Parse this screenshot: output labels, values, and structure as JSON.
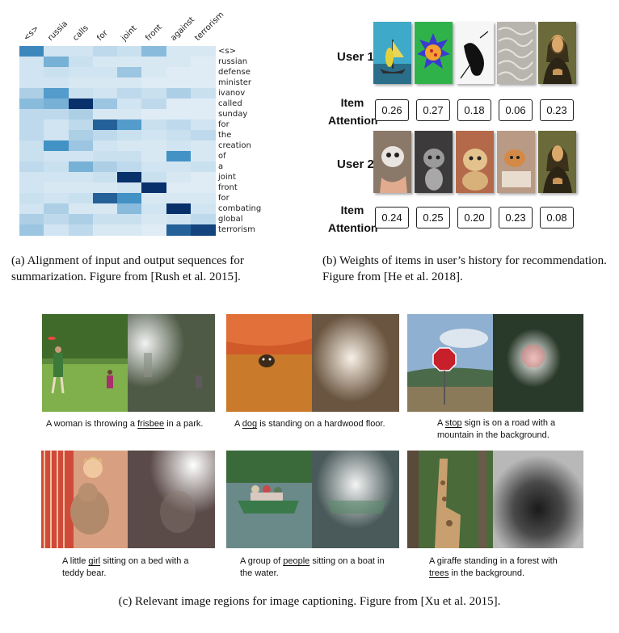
{
  "panel_a": {
    "columns": [
      "<s>",
      "russia",
      "calls",
      "for",
      "joint",
      "front",
      "against",
      "terrorism"
    ],
    "rows": [
      "<s>",
      "russian",
      "defense",
      "minister",
      "ivanov",
      "called",
      "sunday",
      "for",
      "the",
      "creation",
      "of",
      "a",
      "joint",
      "front",
      "for",
      "combating",
      "global",
      "terrorism"
    ],
    "caption": "(a) Alignment of input and output sequences for summarization. Figure from [Rush et al. 2015]."
  },
  "panel_b": {
    "users": [
      {
        "label": "User 1",
        "weights": [
          "0.26",
          "0.27",
          "0.18",
          "0.06",
          "0.23"
        ]
      },
      {
        "label": "User 2",
        "weights": [
          "0.24",
          "0.25",
          "0.20",
          "0.23",
          "0.08"
        ]
      }
    ],
    "item_attention_label": "Item Attention",
    "caption": "(b) Weights of items in user’s history for recommendation. Figure from [He et al. 2018]."
  },
  "panel_c": {
    "captions": [
      {
        "before": "A woman is throwing a ",
        "word": "frisbee",
        "after": " in a park."
      },
      {
        "before": "A ",
        "word": "dog",
        "after": " is standing on a hardwood floor."
      },
      {
        "before": "A ",
        "word": "stop",
        "after": " sign is on a road with a mountain in the background."
      },
      {
        "before": "A little ",
        "word": "girl",
        "after": " sitting on a bed with a teddy bear."
      },
      {
        "before": "A group of ",
        "word": "people",
        "after": " sitting on a boat in the water."
      },
      {
        "before": "A giraffe standing in a forest with ",
        "word": "trees",
        "after": " in the background."
      }
    ],
    "caption": "(c) Relevant image regions for image captioning. Figure from [Xu et al. 2015]."
  },
  "chart_data": {
    "type": "heatmap",
    "x": [
      "<s>",
      "russia",
      "calls",
      "for",
      "joint",
      "front",
      "against",
      "terrorism"
    ],
    "y": [
      "<s>",
      "russian",
      "defense",
      "minister",
      "ivanov",
      "called",
      "sunday",
      "for",
      "the",
      "creation",
      "of",
      "a",
      "joint",
      "front",
      "for",
      "combating",
      "global",
      "terrorism"
    ],
    "values": [
      [
        0.55,
        0.1,
        0.1,
        0.15,
        0.12,
        0.3,
        0.08,
        0.08
      ],
      [
        0.1,
        0.35,
        0.12,
        0.08,
        0.08,
        0.08,
        0.08,
        0.06
      ],
      [
        0.1,
        0.12,
        0.1,
        0.1,
        0.25,
        0.08,
        0.06,
        0.06
      ],
      [
        0.1,
        0.1,
        0.08,
        0.08,
        0.08,
        0.06,
        0.06,
        0.06
      ],
      [
        0.2,
        0.45,
        0.12,
        0.1,
        0.15,
        0.12,
        0.2,
        0.12
      ],
      [
        0.3,
        0.35,
        1.0,
        0.25,
        0.1,
        0.15,
        0.06,
        0.06
      ],
      [
        0.15,
        0.15,
        0.2,
        0.08,
        0.08,
        0.06,
        0.06,
        0.06
      ],
      [
        0.15,
        0.1,
        0.15,
        0.75,
        0.45,
        0.12,
        0.15,
        0.1
      ],
      [
        0.15,
        0.1,
        0.2,
        0.15,
        0.12,
        0.1,
        0.12,
        0.15
      ],
      [
        0.12,
        0.5,
        0.25,
        0.1,
        0.08,
        0.08,
        0.1,
        0.08
      ],
      [
        0.12,
        0.1,
        0.1,
        0.12,
        0.12,
        0.08,
        0.5,
        0.08
      ],
      [
        0.15,
        0.12,
        0.35,
        0.2,
        0.15,
        0.1,
        0.1,
        0.12
      ],
      [
        0.1,
        0.1,
        0.1,
        0.12,
        1.0,
        0.12,
        0.08,
        0.06
      ],
      [
        0.1,
        0.08,
        0.08,
        0.08,
        0.1,
        1.0,
        0.06,
        0.06
      ],
      [
        0.12,
        0.1,
        0.12,
        0.75,
        0.5,
        0.08,
        0.08,
        0.08
      ],
      [
        0.1,
        0.2,
        0.08,
        0.08,
        0.3,
        0.1,
        1.0,
        0.1
      ],
      [
        0.2,
        0.15,
        0.2,
        0.12,
        0.12,
        0.08,
        0.1,
        0.15
      ],
      [
        0.25,
        0.1,
        0.15,
        0.08,
        0.08,
        0.06,
        0.75,
        0.9
      ]
    ]
  }
}
